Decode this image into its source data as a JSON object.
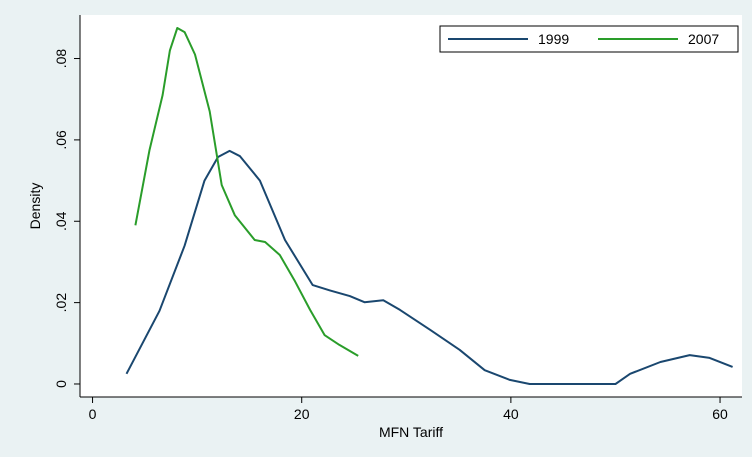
{
  "chart_data": {
    "type": "line",
    "x_label": "MFN Tariff",
    "y_label": "Density",
    "xlim": [
      -1.2,
      62.1
    ],
    "ylim": [
      -0.0032,
      0.0907
    ],
    "xticks": [
      0,
      20,
      40,
      60
    ],
    "yticks": [
      0,
      {
        "value": 0.02,
        "label": ".02"
      },
      {
        "value": 0.04,
        "label": ".04"
      },
      {
        "value": 0.06,
        "label": ".06"
      },
      {
        "value": 0.08,
        "label": ".08"
      }
    ],
    "grid": false,
    "legend": "top-right",
    "series": [
      {
        "name": "1999",
        "color": "#1a476f",
        "x": [
          3.25,
          6.4,
          8.8,
          10.7,
          12,
          13.1,
          14.1,
          16,
          18.4,
          21.05,
          22.7,
          24.6,
          26,
          27.8,
          29.4,
          32.3,
          35.1,
          37.5,
          39.9,
          41.8,
          47.6,
          50,
          51.4,
          54.3,
          57.1,
          59,
          61.2
        ],
        "values": [
          0.0025,
          0.018,
          0.034,
          0.05,
          0.0558,
          0.0573,
          0.056,
          0.05,
          0.0354,
          0.0243,
          0.023,
          0.0216,
          0.0201,
          0.0206,
          0.0182,
          0.0133,
          0.0084,
          0.0034,
          0.001,
          0,
          0,
          0,
          0.0025,
          0.0054,
          0.0071,
          0.0064,
          0.0042
        ]
      },
      {
        "name": "2007",
        "color": "#2a9d2a",
        "x": [
          4.1,
          5.45,
          6.7,
          7.4,
          8.1,
          8.8,
          9.8,
          11.2,
          12.35,
          13.6,
          15.5,
          16.5,
          17.9,
          19.3,
          20.8,
          22.2,
          23.6,
          25.4
        ],
        "values": [
          0.039,
          0.0575,
          0.071,
          0.082,
          0.0875,
          0.0865,
          0.081,
          0.067,
          0.0489,
          0.0415,
          0.0354,
          0.0349,
          0.0317,
          0.0255,
          0.0182,
          0.012,
          0.0096,
          0.0069
        ]
      }
    ]
  }
}
